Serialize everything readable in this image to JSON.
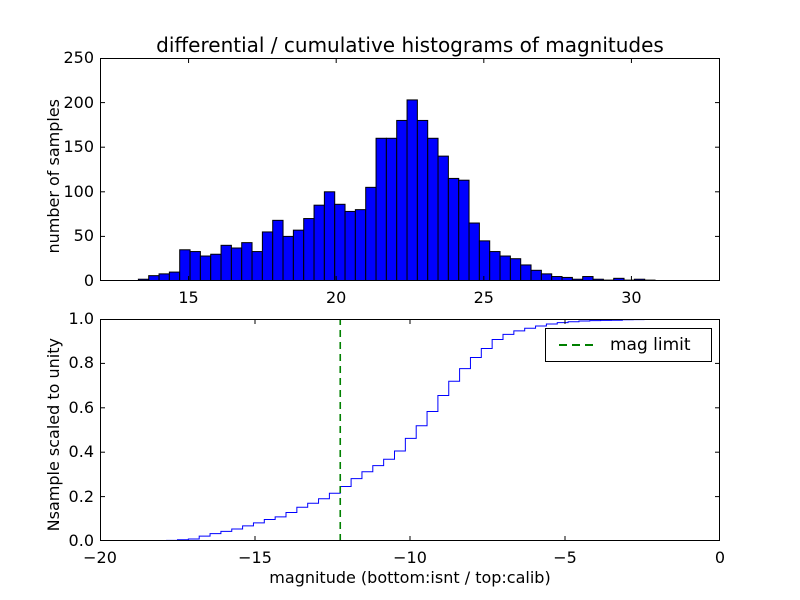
{
  "chart_data": [
    {
      "type": "bar",
      "role": "differential-histogram",
      "title": "differential / cumulative histograms of magnitudes",
      "ylabel": "number of samples",
      "xlim": [
        12,
        33
      ],
      "ylim": [
        0,
        250
      ],
      "xticks": [
        15,
        20,
        25,
        30
      ],
      "xtick_labels": [
        "15",
        "20",
        "25",
        "30"
      ],
      "yticks": [
        0,
        50,
        100,
        150,
        200,
        250
      ],
      "ytick_labels": [
        "0",
        "50",
        "100",
        "150",
        "200",
        "250"
      ],
      "bin_start": 13.3,
      "bin_width": 0.35,
      "counts": [
        2,
        6,
        8,
        10,
        35,
        33,
        28,
        30,
        40,
        37,
        43,
        33,
        55,
        68,
        50,
        57,
        70,
        85,
        100,
        86,
        78,
        80,
        105,
        160,
        160,
        180,
        203,
        180,
        160,
        140,
        115,
        113,
        65,
        45,
        33,
        28,
        25,
        18,
        12,
        8,
        5,
        4,
        2,
        5,
        2,
        1,
        3,
        1,
        2,
        1
      ],
      "bar_color": "#0000ff",
      "edge_color": "#000000",
      "grid": false
    },
    {
      "type": "line",
      "role": "cumulative-histogram",
      "ylabel": "Nsample scaled to unity",
      "xlabel": "magnitude (bottom:isnt / top:calib)",
      "xlim": [
        -20,
        0
      ],
      "ylim": [
        0,
        1
      ],
      "xticks": [
        -20,
        -15,
        -10,
        -5,
        0
      ],
      "xtick_labels": [
        "−20",
        "−15",
        "−10",
        "−5",
        "0"
      ],
      "yticks": [
        0,
        0.2,
        0.4,
        0.6,
        0.8,
        1
      ],
      "ytick_labels": [
        "0.0",
        "0.2",
        "0.4",
        "0.6",
        "0.8",
        "1.0"
      ],
      "x_offset_from_top": -31.5,
      "line_color": "#0000ff",
      "mag_limit": {
        "x": -12.25,
        "color": "#008000",
        "linestyle": "dashed",
        "label": "mag limit"
      },
      "legend": {
        "position": "upper right",
        "entries": [
          "mag limit"
        ]
      },
      "grid": false
    }
  ]
}
